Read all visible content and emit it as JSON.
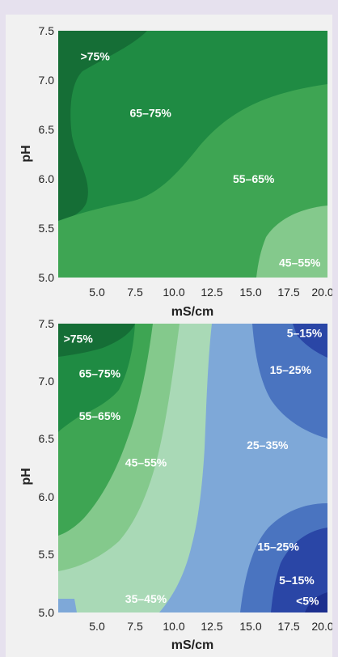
{
  "colors": {
    "background": "#e6e1ee",
    "panel": "#f1f1f1",
    "green_darkest": "#156e36",
    "green_dark": "#1f8b43",
    "green_mid": "#3ea553",
    "green_light": "#84c98c",
    "green_pale": "#a9d9b6",
    "blue_light": "#7ea8d8",
    "blue_mid": "#4a74c0",
    "blue_dark": "#2a46a6",
    "blue_darkest": "#1c2f8e"
  },
  "chart_data": [
    {
      "type": "contour",
      "xlabel": "mS/cm",
      "ylabel": "pH",
      "xlim": [
        2.5,
        20.0
      ],
      "ylim": [
        5.0,
        7.5
      ],
      "x_ticks": [
        "5.0",
        "7.5",
        "10.0",
        "12.5",
        "15.0",
        "17.5",
        "20.0"
      ],
      "y_ticks": [
        "7.5",
        "7.0",
        "6.5",
        "6.0",
        "5.5",
        "5.0"
      ],
      "region_labels": [
        {
          "text": ">75%",
          "x": 4.9,
          "y": 7.24,
          "color": "#156e36"
        },
        {
          "text": "65–75%",
          "x": 8.5,
          "y": 6.67,
          "color": "#1f8b43"
        },
        {
          "text": "55–65%",
          "x": 15.2,
          "y": 6.0,
          "color": "#3ea553"
        },
        {
          "text": "45–55%",
          "x": 18.2,
          "y": 5.15,
          "color": "#84c98c"
        }
      ]
    },
    {
      "type": "contour",
      "xlabel": "mS/cm",
      "ylabel": "pH",
      "xlim": [
        2.5,
        20.0
      ],
      "ylim": [
        5.0,
        7.5
      ],
      "x_ticks": [
        "5.0",
        "7.5",
        "10.0",
        "12.5",
        "15.0",
        "17.5",
        "20.0"
      ],
      "y_ticks": [
        "7.5",
        "7.0",
        "6.5",
        "6.0",
        "5.5",
        "5.0"
      ],
      "region_labels": [
        {
          "text": ">75%",
          "x": 3.8,
          "y": 7.37,
          "color": "#156e36"
        },
        {
          "text": "65–75%",
          "x": 5.2,
          "y": 7.07,
          "color": "#1f8b43"
        },
        {
          "text": "55–65%",
          "x": 5.2,
          "y": 6.7,
          "color": "#3ea553"
        },
        {
          "text": "45–55%",
          "x": 8.2,
          "y": 6.3,
          "color": "#84c98c"
        },
        {
          "text": "35–45%",
          "x": 8.2,
          "y": 5.12,
          "color": "#a9d9b6"
        },
        {
          "text": "25–35%",
          "x": 16.1,
          "y": 6.45,
          "color": "#7ea8d8"
        },
        {
          "text": "15–25%",
          "x": 17.6,
          "y": 7.1,
          "color": "#4a74c0"
        },
        {
          "text": "5–15%",
          "x": 18.5,
          "y": 7.42,
          "color": "#2a46a6"
        },
        {
          "text": "15–25%",
          "x": 16.8,
          "y": 5.57,
          "color": "#4a74c0"
        },
        {
          "text": "5–15%",
          "x": 18.0,
          "y": 5.28,
          "color": "#2a46a6"
        },
        {
          "text": "<5%",
          "x": 18.7,
          "y": 5.1,
          "color": "#1c2f8e"
        }
      ]
    }
  ]
}
